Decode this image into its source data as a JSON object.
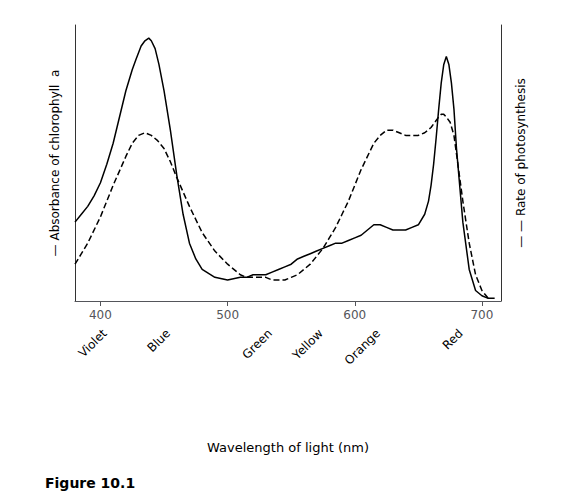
{
  "chart_data": {
    "type": "line",
    "figure_caption": "Figure 10.1",
    "xlabel": "Wavelength of light (nm)",
    "ylabel": "— Absorbance of chlorophyll  a",
    "y2label": "— — Rate of photosynthesis",
    "xlim": [
      380,
      715
    ],
    "xticks": [
      400,
      500,
      600,
      700
    ],
    "ylim": [
      0,
      1.05
    ],
    "y2lim": [
      0,
      1.05
    ],
    "tick_labels": "x",
    "grid": false,
    "annotations": [
      {
        "text": "Violet",
        "x": 400
      },
      {
        "text": "Blue",
        "x": 450
      },
      {
        "text": "Green",
        "x": 530
      },
      {
        "text": "Yellow",
        "x": 570
      },
      {
        "text": "Orange",
        "x": 615
      },
      {
        "text": "Red",
        "x": 680
      }
    ],
    "series": [
      {
        "color": "#000000",
        "line_style": "solid",
        "x": [
          380,
          385,
          390,
          395,
          400,
          405,
          410,
          415,
          420,
          425,
          428,
          432,
          435,
          438,
          440,
          443,
          446,
          450,
          455,
          460,
          465,
          470,
          475,
          480,
          490,
          500,
          510,
          515,
          520,
          525,
          530,
          535,
          540,
          545,
          550,
          555,
          560,
          565,
          570,
          575,
          580,
          585,
          590,
          595,
          600,
          605,
          610,
          615,
          620,
          625,
          630,
          635,
          640,
          645,
          650,
          655,
          658,
          660,
          662,
          664,
          666,
          668,
          670,
          672,
          674,
          676,
          678,
          680,
          685,
          690,
          695,
          700,
          705,
          710
        ],
        "values": [
          0.3,
          0.33,
          0.36,
          0.4,
          0.45,
          0.52,
          0.6,
          0.7,
          0.8,
          0.88,
          0.92,
          0.97,
          0.99,
          1.0,
          0.99,
          0.96,
          0.9,
          0.8,
          0.65,
          0.48,
          0.33,
          0.22,
          0.16,
          0.12,
          0.09,
          0.08,
          0.09,
          0.09,
          0.1,
          0.1,
          0.1,
          0.11,
          0.12,
          0.13,
          0.14,
          0.16,
          0.17,
          0.18,
          0.19,
          0.2,
          0.21,
          0.22,
          0.22,
          0.23,
          0.24,
          0.25,
          0.27,
          0.29,
          0.29,
          0.28,
          0.27,
          0.27,
          0.27,
          0.28,
          0.29,
          0.33,
          0.38,
          0.44,
          0.52,
          0.62,
          0.73,
          0.83,
          0.9,
          0.93,
          0.9,
          0.83,
          0.73,
          0.58,
          0.3,
          0.12,
          0.04,
          0.02,
          0.01,
          0.01
        ]
      },
      {
        "color": "#000000",
        "line_style": "dashed",
        "x": [
          380,
          390,
          400,
          410,
          420,
          425,
          430,
          435,
          440,
          445,
          450,
          455,
          460,
          470,
          480,
          490,
          500,
          510,
          515,
          520,
          525,
          530,
          535,
          540,
          545,
          550,
          555,
          560,
          565,
          570,
          575,
          580,
          585,
          590,
          595,
          600,
          605,
          610,
          615,
          620,
          625,
          630,
          635,
          640,
          645,
          650,
          655,
          660,
          663,
          666,
          668,
          670,
          672,
          675,
          678,
          680,
          685,
          690,
          695,
          700,
          705
        ],
        "values": [
          0.14,
          0.22,
          0.32,
          0.44,
          0.55,
          0.6,
          0.63,
          0.64,
          0.63,
          0.61,
          0.58,
          0.53,
          0.47,
          0.36,
          0.26,
          0.19,
          0.14,
          0.1,
          0.09,
          0.09,
          0.09,
          0.09,
          0.08,
          0.08,
          0.08,
          0.09,
          0.1,
          0.12,
          0.14,
          0.17,
          0.2,
          0.24,
          0.28,
          0.33,
          0.38,
          0.44,
          0.5,
          0.55,
          0.6,
          0.63,
          0.65,
          0.65,
          0.64,
          0.63,
          0.63,
          0.63,
          0.64,
          0.66,
          0.68,
          0.7,
          0.71,
          0.71,
          0.7,
          0.68,
          0.63,
          0.56,
          0.38,
          0.22,
          0.1,
          0.04,
          0.01
        ]
      }
    ]
  }
}
